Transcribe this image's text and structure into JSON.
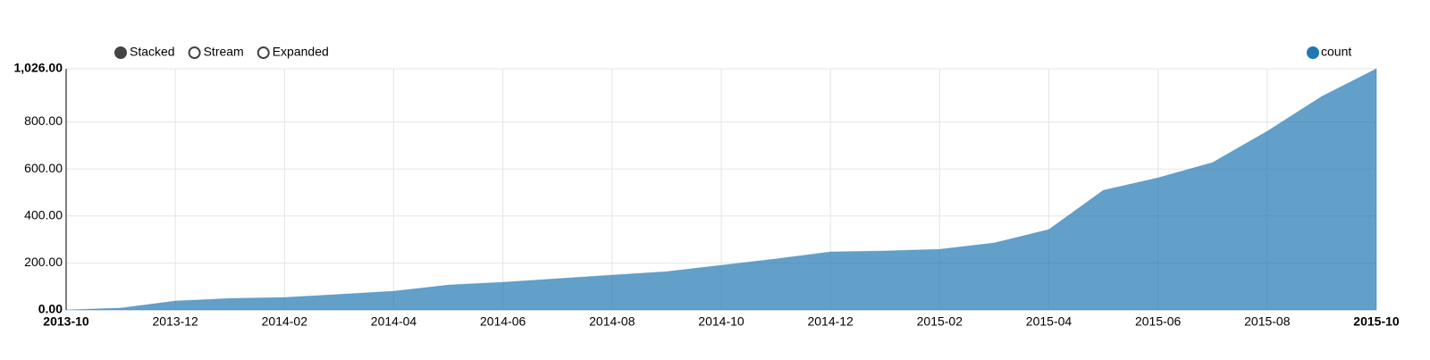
{
  "chart_data": {
    "type": "area",
    "controls": [
      "Stacked",
      "Stream",
      "Expanded"
    ],
    "selected_control": "Stacked",
    "x": [
      "2013-10",
      "2013-11",
      "2013-12",
      "2014-01",
      "2014-02",
      "2014-03",
      "2014-04",
      "2014-05",
      "2014-06",
      "2014-07",
      "2014-08",
      "2014-09",
      "2014-10",
      "2014-11",
      "2014-12",
      "2015-01",
      "2015-02",
      "2015-03",
      "2015-04",
      "2015-05",
      "2015-06",
      "2015-07",
      "2015-08",
      "2015-09",
      "2015-10"
    ],
    "series": [
      {
        "name": "count",
        "color": "#1f77b4",
        "values": [
          0,
          8,
          38,
          49,
          53,
          66,
          80,
          106,
          118,
          133,
          148,
          163,
          190,
          217,
          247,
          251,
          258,
          285,
          342,
          509,
          562,
          627,
          760,
          908,
          1026
        ]
      }
    ],
    "xticks": [
      "2013-10",
      "2013-12",
      "2014-02",
      "2014-04",
      "2014-06",
      "2014-08",
      "2014-10",
      "2014-12",
      "2015-02",
      "2015-04",
      "2015-06",
      "2015-08",
      "2015-10"
    ],
    "ylim": [
      0,
      1026
    ],
    "yticks": [
      {
        "value": 0,
        "label": "0.00"
      },
      {
        "value": 200,
        "label": "200.00"
      },
      {
        "value": 400,
        "label": "400.00"
      },
      {
        "value": 600,
        "label": "600.00"
      },
      {
        "value": 800,
        "label": "800.00"
      },
      {
        "value": 1026,
        "label": "1,026.00"
      }
    ],
    "grid": true,
    "legend_position": "top-right"
  }
}
